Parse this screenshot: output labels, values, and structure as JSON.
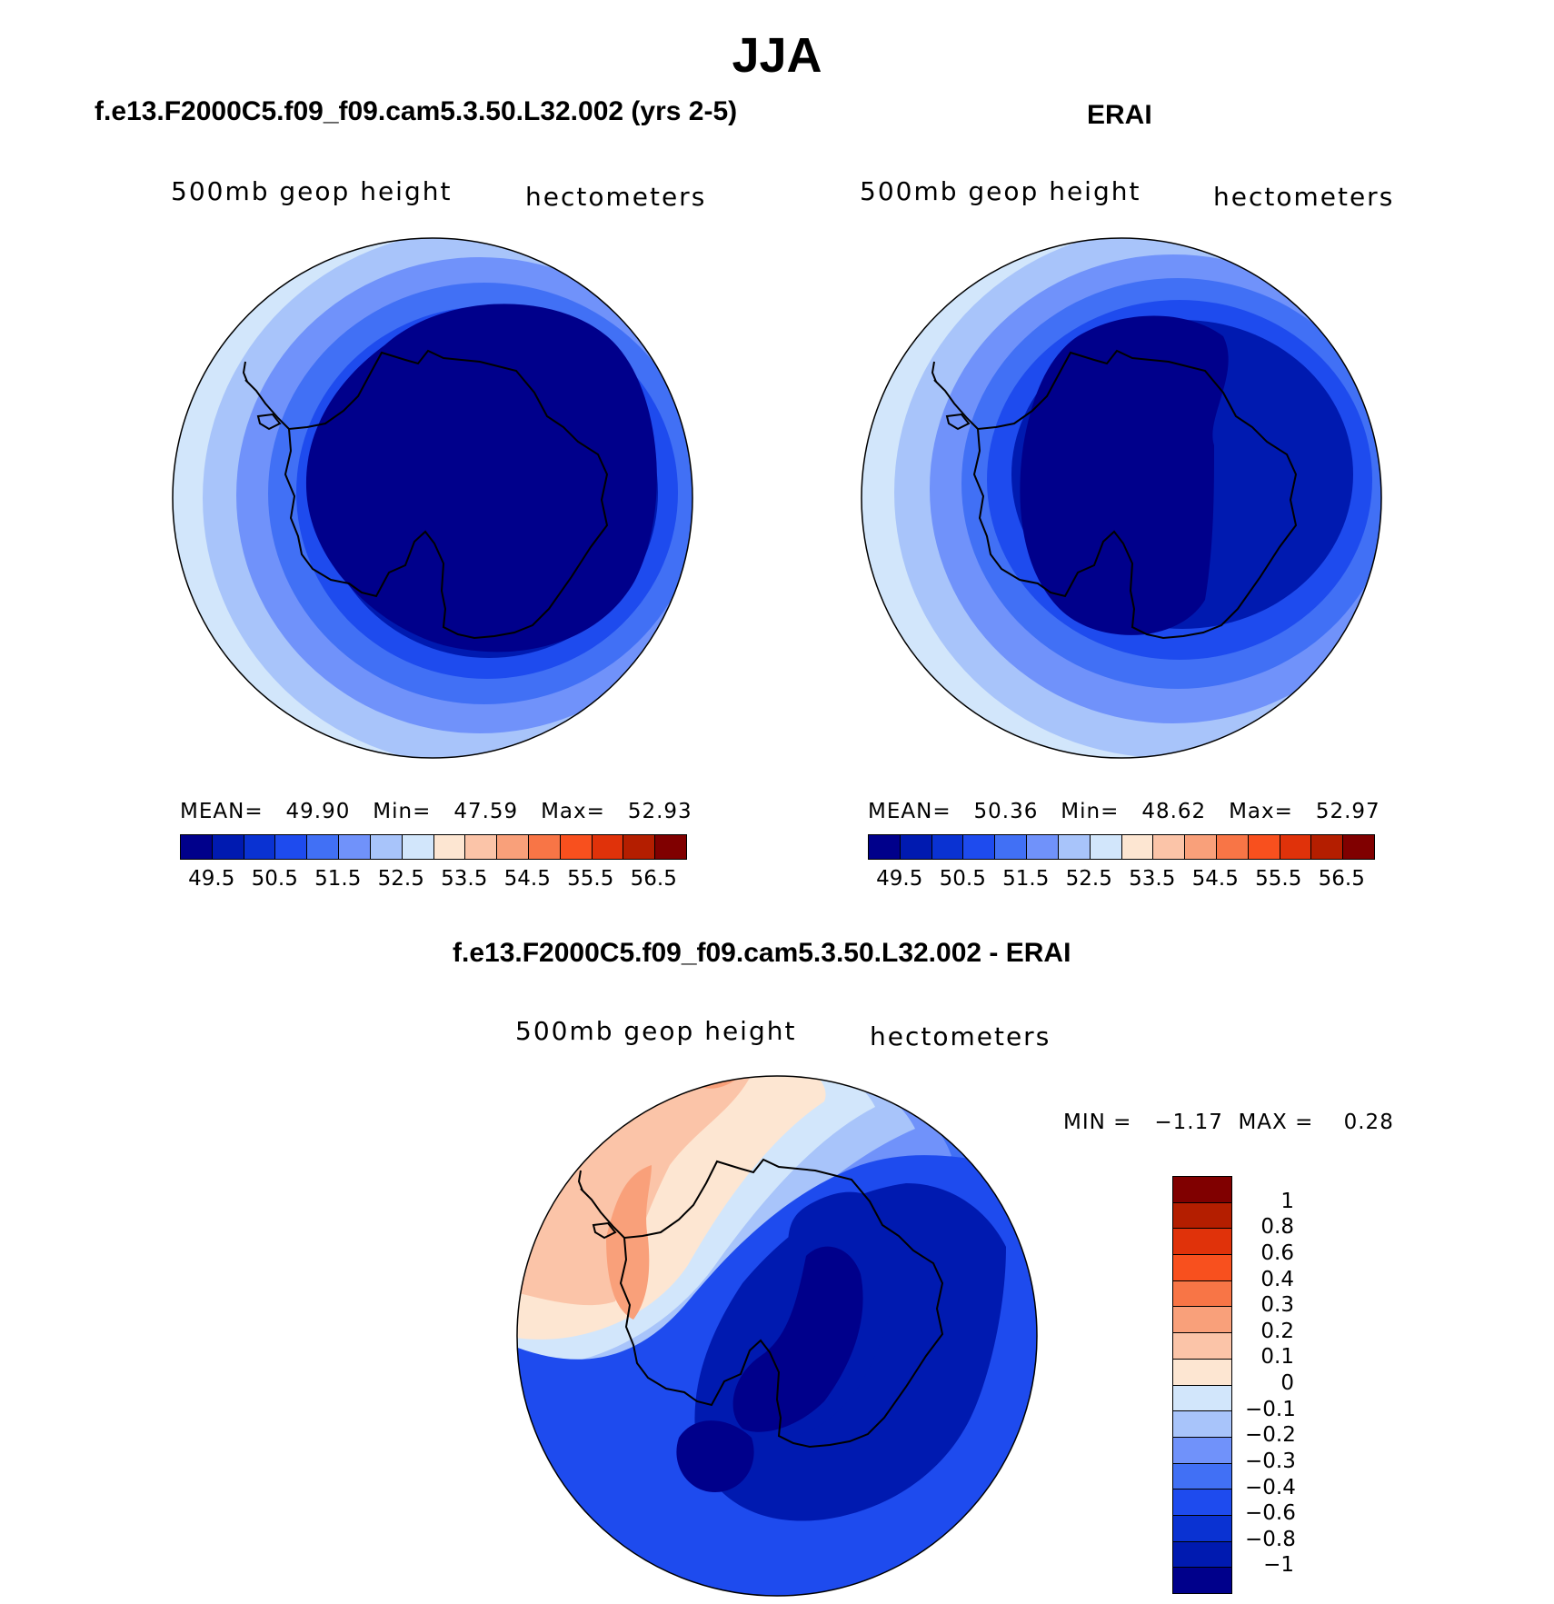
{
  "figure": {
    "title": "JJA"
  },
  "palette": {
    "blues": [
      "#00008b",
      "#001ab0",
      "#0a32d2",
      "#1e4bee",
      "#4170f5",
      "#7092fa",
      "#a8c4fa",
      "#d2e6fb"
    ],
    "reds": [
      "#fde6d2",
      "#fbc4a8",
      "#f9a07a",
      "#f87546",
      "#f8501e",
      "#e0320a",
      "#b41e00",
      "#800000"
    ],
    "coast": "#000000"
  },
  "panels": {
    "model": {
      "title": "f.e13.F2000C5.f09_f09.cam5.3.50.L32.002 (yrs 2-5)",
      "variable": "500mb geop height",
      "units": "hectometers",
      "stats": "MEAN=   49.90   Min=   47.59   Max=   52.93",
      "colorbar_ticks": [
        "49.5",
        "50.5",
        "51.5",
        "52.5",
        "53.5",
        "54.5",
        "55.5",
        "56.5"
      ]
    },
    "obs": {
      "title": "ERAI",
      "variable": "500mb geop height",
      "units": "hectometers",
      "stats": "MEAN=   50.36   Min=   48.62   Max=   52.97",
      "colorbar_ticks": [
        "49.5",
        "50.5",
        "51.5",
        "52.5",
        "53.5",
        "54.5",
        "55.5",
        "56.5"
      ]
    },
    "diff": {
      "title": "f.e13.F2000C5.f09_f09.cam5.3.50.L32.002 - ERAI",
      "variable": "500mb geop height",
      "units": "hectometers",
      "stats": "MIN =   −1.17  MAX =    0.28",
      "colorbar_ticks": [
        "1",
        "0.8",
        "0.6",
        "0.4",
        "0.3",
        "0.2",
        "0.1",
        "0",
        "−0.1",
        "−0.2",
        "−0.3",
        "−0.4",
        "−0.6",
        "−0.8",
        "−1"
      ]
    }
  },
  "chart_data": [
    {
      "type": "heatmap",
      "title": "f.e13.F2000C5.f09_f09.cam5.3.50.L32.002 (yrs 2-5)",
      "projection": "south polar stereographic",
      "variable": "500mb geop height",
      "units": "hectometers",
      "mean": 49.9,
      "min": 47.59,
      "max": 52.93,
      "contour_levels": [
        49.5,
        50,
        50.5,
        51,
        51.5,
        52,
        52.5,
        53,
        53.5,
        54,
        54.5,
        55,
        55.5,
        56,
        56.5
      ]
    },
    {
      "type": "heatmap",
      "title": "ERAI",
      "projection": "south polar stereographic",
      "variable": "500mb geop height",
      "units": "hectometers",
      "mean": 50.36,
      "min": 48.62,
      "max": 52.97,
      "contour_levels": [
        49.5,
        50,
        50.5,
        51,
        51.5,
        52,
        52.5,
        53,
        53.5,
        54,
        54.5,
        55,
        55.5,
        56,
        56.5
      ]
    },
    {
      "type": "heatmap",
      "title": "f.e13.F2000C5.f09_f09.cam5.3.50.L32.002 - ERAI",
      "projection": "south polar stereographic",
      "variable": "500mb geop height",
      "units": "hectometers",
      "min": -1.17,
      "max": 0.28,
      "contour_levels": [
        -1,
        -0.8,
        -0.6,
        -0.4,
        -0.3,
        -0.2,
        -0.1,
        0,
        0.1,
        0.2,
        0.3,
        0.4,
        0.6,
        0.8,
        1
      ]
    }
  ]
}
